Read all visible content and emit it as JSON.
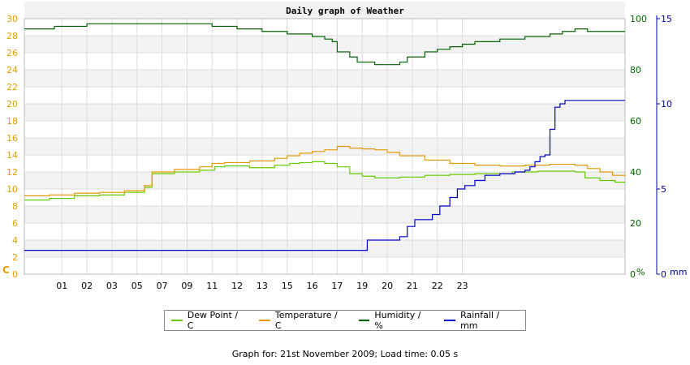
{
  "chart_data": {
    "type": "line",
    "title": "Daily graph of Weather",
    "x_tick_labels": [
      "01",
      "02",
      "03",
      "05",
      "07",
      "09",
      "11",
      "12",
      "13",
      "15",
      "16",
      "17",
      "19",
      "20",
      "21",
      "22",
      "23"
    ],
    "axes": {
      "left": {
        "unit_label": "C",
        "min": 0,
        "max": 30,
        "step": 2,
        "color": "#e0a000"
      },
      "right_humidity": {
        "unit_label": "%",
        "min": 0,
        "max": 100,
        "ticks": [
          0,
          20,
          40,
          60,
          80,
          100
        ],
        "color": "#006400"
      },
      "right_rainfall": {
        "unit_label": "mm",
        "min": 0,
        "max": 15,
        "ticks": [
          0,
          5,
          10,
          15
        ],
        "color": "#0000aa"
      }
    },
    "grid": true,
    "legend_position": "bottom",
    "series": [
      {
        "name": "Dew Point / C",
        "color": "#66cc00",
        "axis": "left",
        "points": [
          [
            0,
            8.7
          ],
          [
            1,
            8.9
          ],
          [
            2,
            9.2
          ],
          [
            3,
            9.3
          ],
          [
            4,
            9.6
          ],
          [
            4.8,
            10.2
          ],
          [
            5.1,
            11.8
          ],
          [
            6,
            12.0
          ],
          [
            7,
            12.2
          ],
          [
            7.6,
            12.6
          ],
          [
            8,
            12.7
          ],
          [
            9,
            12.5
          ],
          [
            10,
            12.8
          ],
          [
            10.6,
            13.0
          ],
          [
            11,
            13.1
          ],
          [
            11.5,
            13.2
          ],
          [
            12,
            13.0
          ],
          [
            12.5,
            12.6
          ],
          [
            13,
            11.8
          ],
          [
            13.5,
            11.5
          ],
          [
            14,
            11.3
          ],
          [
            15,
            11.4
          ],
          [
            16,
            11.6
          ],
          [
            17,
            11.7
          ],
          [
            18,
            11.8
          ],
          [
            19,
            11.8
          ],
          [
            19.5,
            12.0
          ],
          [
            20,
            12.0
          ],
          [
            20.5,
            12.1
          ],
          [
            21,
            12.1
          ],
          [
            22,
            12.0
          ],
          [
            22.4,
            11.3
          ],
          [
            23,
            11.0
          ],
          [
            23.6,
            10.8
          ],
          [
            24,
            10.8
          ]
        ]
      },
      {
        "name": "Temperature / C",
        "color": "#e69900",
        "axis": "left",
        "points": [
          [
            0,
            9.2
          ],
          [
            1,
            9.3
          ],
          [
            2,
            9.5
          ],
          [
            3,
            9.6
          ],
          [
            4,
            9.8
          ],
          [
            4.8,
            10.4
          ],
          [
            5.1,
            12.0
          ],
          [
            6,
            12.3
          ],
          [
            7,
            12.6
          ],
          [
            7.5,
            13.0
          ],
          [
            8,
            13.1
          ],
          [
            9,
            13.3
          ],
          [
            10,
            13.6
          ],
          [
            10.5,
            13.9
          ],
          [
            11,
            14.2
          ],
          [
            11.5,
            14.4
          ],
          [
            12,
            14.6
          ],
          [
            12.5,
            15.0
          ],
          [
            13,
            14.8
          ],
          [
            13.5,
            14.7
          ],
          [
            14,
            14.6
          ],
          [
            14.5,
            14.3
          ],
          [
            15,
            13.9
          ],
          [
            16,
            13.4
          ],
          [
            17,
            13.0
          ],
          [
            18,
            12.8
          ],
          [
            19,
            12.7
          ],
          [
            19.5,
            12.7
          ],
          [
            20,
            12.8
          ],
          [
            21,
            12.9
          ],
          [
            22,
            12.8
          ],
          [
            22.5,
            12.4
          ],
          [
            23,
            12.0
          ],
          [
            23.5,
            11.6
          ],
          [
            24,
            11.5
          ]
        ]
      },
      {
        "name": "Humidity / %",
        "color": "#006400",
        "axis": "right_humidity",
        "points": [
          [
            0,
            96
          ],
          [
            1,
            96
          ],
          [
            1.2,
            97
          ],
          [
            2,
            97
          ],
          [
            2.5,
            98
          ],
          [
            3,
            98
          ],
          [
            4,
            98
          ],
          [
            5,
            98
          ],
          [
            6,
            98
          ],
          [
            7,
            98
          ],
          [
            7.5,
            97
          ],
          [
            8,
            97
          ],
          [
            8.5,
            96
          ],
          [
            9,
            96
          ],
          [
            9.5,
            95
          ],
          [
            10,
            95
          ],
          [
            10.5,
            94
          ],
          [
            11,
            94
          ],
          [
            11.5,
            93
          ],
          [
            12,
            92
          ],
          [
            12.3,
            91
          ],
          [
            12.5,
            87
          ],
          [
            13,
            85
          ],
          [
            13.3,
            83
          ],
          [
            14,
            82
          ],
          [
            14.8,
            82
          ],
          [
            15,
            83
          ],
          [
            15.3,
            85
          ],
          [
            16,
            87
          ],
          [
            16.5,
            88
          ],
          [
            17,
            89
          ],
          [
            17.5,
            90
          ],
          [
            18,
            91
          ],
          [
            18.5,
            91
          ],
          [
            19,
            92
          ],
          [
            20,
            93
          ],
          [
            21,
            94
          ],
          [
            21.5,
            95
          ],
          [
            22,
            96
          ],
          [
            22.5,
            95
          ],
          [
            23,
            95
          ],
          [
            24,
            95
          ]
        ]
      },
      {
        "name": "Rainfall / mm",
        "color": "#0000cc",
        "axis": "right_rainfall",
        "points": [
          [
            0,
            1.4
          ],
          [
            13.4,
            1.4
          ],
          [
            13.7,
            2.0
          ],
          [
            14.8,
            2.0
          ],
          [
            15.0,
            2.2
          ],
          [
            15.3,
            2.8
          ],
          [
            15.6,
            3.2
          ],
          [
            16,
            3.2
          ],
          [
            16.3,
            3.5
          ],
          [
            16.6,
            4.0
          ],
          [
            17,
            4.5
          ],
          [
            17.3,
            5.0
          ],
          [
            17.6,
            5.2
          ],
          [
            18,
            5.5
          ],
          [
            18.4,
            5.8
          ],
          [
            18.7,
            5.8
          ],
          [
            19,
            5.9
          ],
          [
            19.3,
            5.9
          ],
          [
            19.6,
            6.0
          ],
          [
            20,
            6.1
          ],
          [
            20.2,
            6.3
          ],
          [
            20.4,
            6.6
          ],
          [
            20.6,
            6.9
          ],
          [
            20.8,
            7.0
          ],
          [
            21.0,
            8.5
          ],
          [
            21.2,
            9.8
          ],
          [
            21.4,
            10.0
          ],
          [
            21.6,
            10.2
          ],
          [
            22,
            10.2
          ],
          [
            23,
            10.2
          ],
          [
            24,
            10.2
          ]
        ]
      }
    ]
  },
  "footer_text": "Graph for: 21st November 2009; Load time: 0.05 s"
}
